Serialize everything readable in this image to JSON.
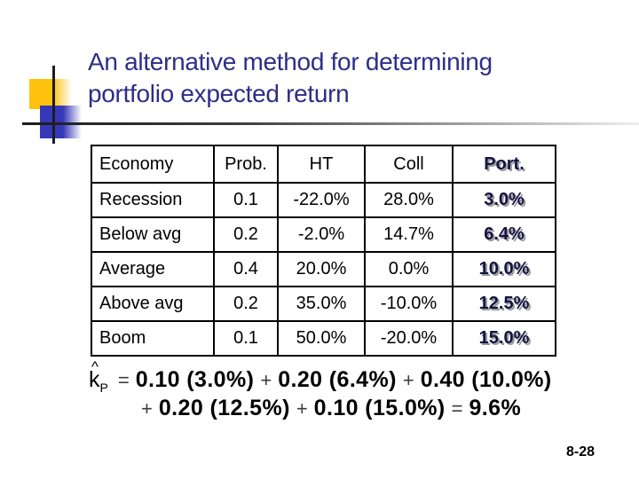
{
  "slide": {
    "title_line1": "An alternative method for determining",
    "title_line2": "portfolio expected return",
    "page_number": "8-28"
  },
  "colors": {
    "title_navy": "#2D2E87",
    "accent_yellow": "#FFC20E",
    "accent_blue": "#3538B8",
    "port_text": "#131342",
    "port_shadow": "#9A9A9A"
  },
  "table": {
    "headers": [
      "Economy",
      "Prob.",
      "HT",
      "Coll",
      "Port."
    ],
    "rows": [
      [
        "Recession",
        "0.1",
        "-22.0%",
        "28.0%",
        "3.0%"
      ],
      [
        "Below avg",
        "0.2",
        "-2.0%",
        "14.7%",
        "6.4%"
      ],
      [
        "Average",
        "0.4",
        "20.0%",
        "0.0%",
        "10.0%"
      ],
      [
        "Above avg",
        "0.2",
        "35.0%",
        "-10.0%",
        "12.5%"
      ],
      [
        "Boom",
        "0.1",
        "50.0%",
        "-20.0%",
        "15.0%"
      ]
    ]
  },
  "formula": {
    "symbol": "k",
    "hat": "^",
    "subscript": "P",
    "line1_tokens": [
      "=",
      "0.10 (3.0%)",
      "+",
      "0.20 (6.4%)",
      "+",
      "0.40 (10.0%)"
    ],
    "line2_tokens": [
      "+",
      "0.20 (12.5%)",
      "+",
      "0.10 (15.0%)",
      "=",
      "9.6%"
    ]
  }
}
